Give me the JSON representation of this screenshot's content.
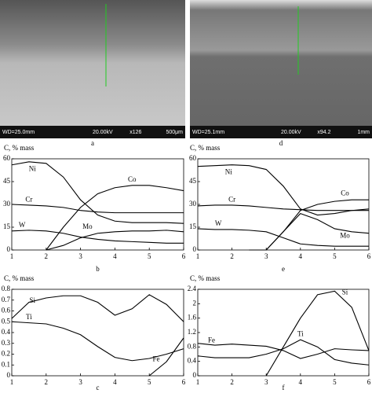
{
  "images": [
    {
      "caption": "a",
      "info": [
        "WD=25.0mm",
        "20.00kV",
        "x126",
        "500μm"
      ]
    },
    {
      "caption": "d",
      "info": [
        "WD=25.1mm",
        "20.00kV",
        "x94.2",
        "1mm"
      ]
    }
  ],
  "chart_data": [
    {
      "type": "line",
      "caption": "b",
      "ylabel": "C, % mass",
      "x": [
        1,
        1.5,
        2,
        2.5,
        3,
        3.5,
        4,
        4.5,
        5,
        5.5,
        6
      ],
      "xlim": [
        1,
        6
      ],
      "xticks": [
        1,
        2,
        3,
        4,
        5,
        6
      ],
      "ylim": [
        0,
        60
      ],
      "yticks": [
        0,
        15,
        30,
        45,
        60
      ],
      "series": [
        {
          "name": "Ni",
          "color": "#000000",
          "values": [
            56,
            58,
            57,
            48,
            33,
            23,
            19,
            18,
            18,
            18,
            17.5
          ]
        },
        {
          "name": "Cr",
          "color": "#000000",
          "values": [
            30,
            29.5,
            29,
            28,
            26,
            25,
            24.5,
            24.5,
            24.5,
            24.5,
            24.5
          ]
        },
        {
          "name": "W",
          "color": "#000000",
          "values": [
            12.5,
            13,
            12.5,
            11,
            8.5,
            7,
            6,
            5.5,
            5,
            4.5,
            4.5
          ]
        },
        {
          "name": "Co",
          "color": "#000000",
          "values": [
            null,
            null,
            0,
            15,
            28,
            37,
            41,
            42.5,
            42.5,
            41,
            39
          ]
        },
        {
          "name": "Mo",
          "color": "#000000",
          "values": [
            null,
            null,
            0,
            3,
            8,
            11,
            12,
            12.5,
            12.5,
            13,
            12
          ]
        }
      ]
    },
    {
      "type": "line",
      "caption": "e",
      "ylabel": "C, % mass",
      "x": [
        1,
        1.5,
        2,
        2.5,
        3,
        3.5,
        4,
        4.5,
        5,
        5.5,
        6
      ],
      "xlim": [
        1,
        6
      ],
      "xticks": [
        1,
        2,
        3,
        4,
        5,
        6
      ],
      "ylim": [
        0,
        60
      ],
      "yticks": [
        0,
        15,
        30,
        45,
        60
      ],
      "series": [
        {
          "name": "Ni",
          "color": "#000000",
          "values": [
            55,
            55.5,
            56,
            55.5,
            53,
            42,
            27,
            23,
            24,
            26,
            27
          ]
        },
        {
          "name": "Cr",
          "color": "#000000",
          "values": [
            29,
            29.5,
            29.5,
            29,
            28,
            27,
            26.5,
            26,
            26,
            26,
            26
          ]
        },
        {
          "name": "W",
          "color": "#000000",
          "values": [
            14,
            13.5,
            13.5,
            13,
            12,
            8,
            4,
            3,
            2.5,
            2.5,
            2.5
          ]
        },
        {
          "name": "Co",
          "color": "#000000",
          "values": [
            null,
            null,
            null,
            0,
            0,
            12,
            26,
            30,
            32,
            33,
            33
          ]
        },
        {
          "name": "Mo",
          "color": "#000000",
          "values": [
            null,
            null,
            null,
            null,
            0,
            12,
            24,
            20,
            14,
            12,
            11
          ]
        }
      ]
    },
    {
      "type": "line",
      "caption": "c",
      "ylabel": "C, % mass",
      "x": [
        1,
        1.5,
        2,
        2.5,
        3,
        3.5,
        4,
        4.5,
        5,
        5.5,
        6
      ],
      "xlim": [
        1,
        6
      ],
      "xticks": [
        1,
        2,
        3,
        4,
        5,
        6
      ],
      "ylim": [
        0,
        0.8
      ],
      "yticks": [
        0,
        0.1,
        0.2,
        0.3,
        0.4,
        0.5,
        0.6,
        0.7,
        0.8
      ],
      "series": [
        {
          "name": "Si",
          "color": "#000000",
          "values": [
            0.53,
            0.68,
            0.72,
            0.74,
            0.74,
            0.68,
            0.56,
            0.62,
            0.75,
            0.66,
            0.5
          ]
        },
        {
          "name": "Ti",
          "color": "#000000",
          "values": [
            0.5,
            0.49,
            0.48,
            0.44,
            0.38,
            0.27,
            0.17,
            0.14,
            0.16,
            0.2,
            0.25
          ]
        },
        {
          "name": "Fe",
          "color": "#000000",
          "values": [
            null,
            null,
            null,
            null,
            null,
            null,
            null,
            null,
            0,
            0.13,
            0.35
          ]
        }
      ]
    },
    {
      "type": "line",
      "caption": "f",
      "ylabel": "C, % mass",
      "x": [
        1,
        1.5,
        2,
        2.5,
        3,
        3.5,
        4,
        4.5,
        5,
        5.5,
        6
      ],
      "xlim": [
        1,
        6
      ],
      "xticks": [
        1,
        2,
        3,
        4,
        5,
        6
      ],
      "ylim": [
        0,
        2.4
      ],
      "yticks": [
        0,
        0.4,
        0.8,
        1.2,
        1.6,
        2,
        2.4
      ],
      "series": [
        {
          "name": "Si",
          "color": "#000000",
          "values": [
            null,
            null,
            null,
            null,
            0,
            0.8,
            1.6,
            2.25,
            2.35,
            1.9,
            0.7
          ]
        },
        {
          "name": "Fe",
          "color": "#000000",
          "values": [
            0.9,
            0.85,
            0.88,
            0.85,
            0.82,
            0.7,
            0.48,
            0.6,
            0.75,
            0.72,
            0.7
          ]
        },
        {
          "name": "Ti",
          "color": "#000000",
          "values": [
            0.55,
            0.5,
            0.5,
            0.5,
            0.6,
            0.75,
            1.0,
            0.8,
            0.45,
            0.35,
            0.3
          ]
        }
      ]
    }
  ]
}
